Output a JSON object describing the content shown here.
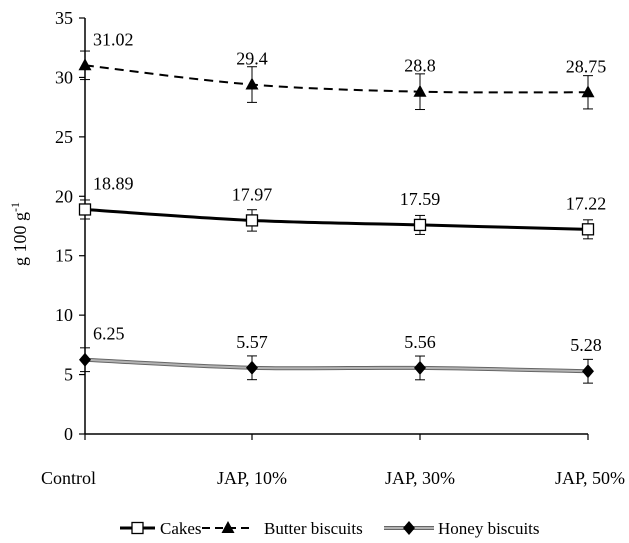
{
  "chart_data": {
    "type": "line",
    "title": "",
    "xlabel": "",
    "ylabel": "g 100 g",
    "ylabel_superscript": "-1",
    "ylim": [
      0,
      35
    ],
    "yticks": [
      0,
      5,
      10,
      15,
      20,
      25,
      30,
      35
    ],
    "grid": false,
    "legend_position": "bottom",
    "categories": [
      "Control",
      "JAP, 10%",
      "JAP, 30%",
      "JAP, 50%"
    ],
    "series": [
      {
        "name": "Cakes",
        "values": [
          18.89,
          17.97,
          17.59,
          17.22
        ],
        "value_labels": [
          "18.89",
          "17.97",
          "17.59",
          "17.22"
        ],
        "error": [
          0.8,
          0.9,
          0.8,
          0.8
        ],
        "marker": "open-square",
        "line_style": "solid",
        "color": "#000000"
      },
      {
        "name": "Butter biscuits",
        "values": [
          31.02,
          29.4,
          28.8,
          28.75
        ],
        "value_labels": [
          "31.02",
          "29.4",
          "28.8",
          "28.75"
        ],
        "error": [
          1.2,
          1.5,
          1.5,
          1.4
        ],
        "marker": "filled-triangle",
        "line_style": "dashed",
        "color": "#000000"
      },
      {
        "name": "Honey biscuits",
        "values": [
          6.25,
          5.57,
          5.56,
          5.28
        ],
        "value_labels": [
          "6.25",
          "5.57",
          "5.56",
          "5.28"
        ],
        "error": [
          1.0,
          1.0,
          1.0,
          1.0
        ],
        "marker": "filled-diamond",
        "line_style": "solid",
        "color": "#999999"
      }
    ]
  }
}
